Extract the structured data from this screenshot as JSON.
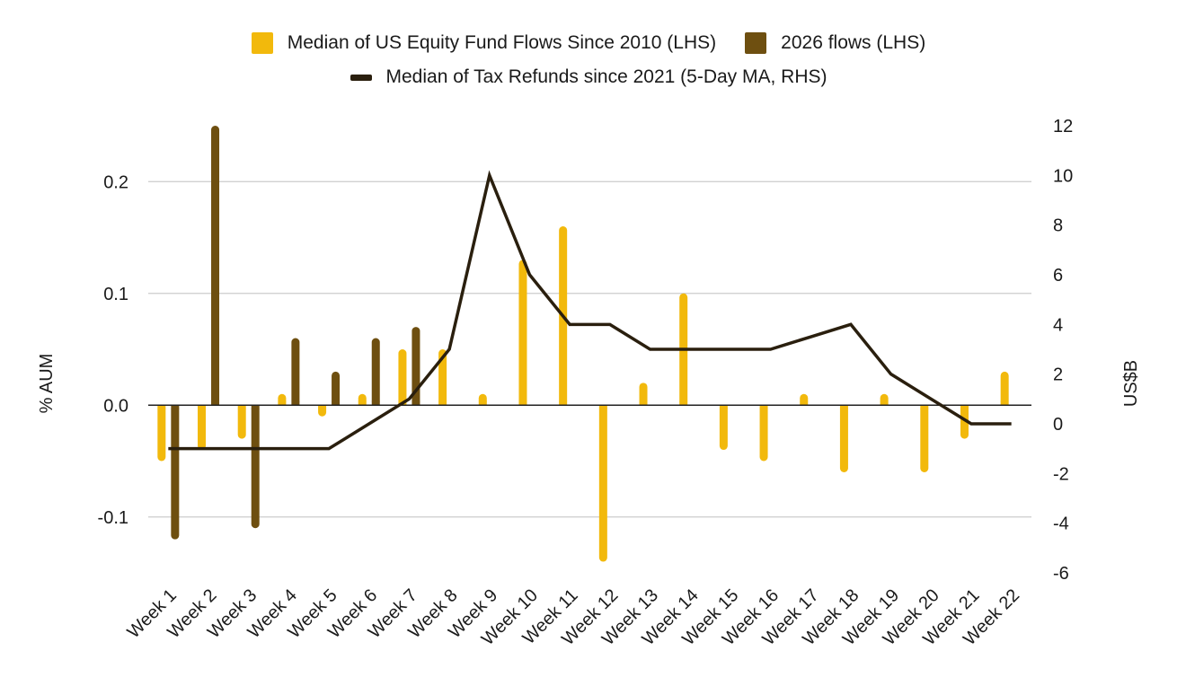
{
  "chart_data": {
    "type": "bar+line",
    "categories": [
      "Week 1",
      "Week 2",
      "Week 3",
      "Week 4",
      "Week 5",
      "Week 6",
      "Week 7",
      "Week 8",
      "Week 9",
      "Week 10",
      "Week 11",
      "Week 12",
      "Week 13",
      "Week 14",
      "Week 15",
      "Week 16",
      "Week 17",
      "Week 18",
      "Week 19",
      "Week 20",
      "Week 21",
      "Week 22"
    ],
    "series": [
      {
        "name": "Median of US Equity Fund Flows Since 2010 (LHS)",
        "type": "bar",
        "axis": "left",
        "color": "#F2B90C",
        "values": [
          -0.05,
          -0.04,
          -0.03,
          0.01,
          -0.01,
          0.01,
          0.05,
          0.05,
          0.01,
          0.13,
          0.16,
          -0.14,
          0.02,
          0.1,
          -0.04,
          -0.05,
          0.01,
          -0.06,
          0.01,
          -0.06,
          -0.03,
          0.03
        ]
      },
      {
        "name": "2026 flows (LHS)",
        "type": "bar",
        "axis": "left",
        "color": "#6E4F10",
        "values": [
          -0.12,
          0.25,
          -0.11,
          0.06,
          0.03,
          0.06,
          0.07,
          null,
          null,
          null,
          null,
          null,
          null,
          null,
          null,
          null,
          null,
          null,
          null,
          null,
          null,
          null
        ]
      },
      {
        "name": "Median of Tax Refunds since 2021 (5-Day MA, RHS)",
        "type": "line",
        "axis": "right",
        "color": "#2A1F0E",
        "values": [
          -1,
          -1,
          -1,
          -1,
          -1,
          0,
          1,
          3,
          10,
          6,
          4,
          4,
          3,
          3,
          3,
          3,
          3.5,
          4,
          2,
          1,
          0,
          0
        ]
      }
    ],
    "left_axis": {
      "title": "% AUM",
      "min": -0.15,
      "max": 0.25,
      "ticks": [
        -0.1,
        0.0,
        0.1,
        0.2
      ],
      "tick_labels": [
        "-0.1",
        "0.0",
        "0.1",
        "0.2"
      ]
    },
    "right_axis": {
      "title": "US$B",
      "min": -6,
      "max": 12,
      "ticks": [
        -6,
        -4,
        -2,
        0,
        2,
        4,
        6,
        8,
        10,
        12
      ],
      "tick_labels": [
        "-6",
        "-4",
        "-2",
        "0",
        "2",
        "4",
        "6",
        "8",
        "10",
        "12"
      ]
    },
    "grid": true,
    "legend_position": "top-center"
  },
  "legend": {
    "item1": "Median of US Equity Fund Flows Since 2010 (LHS)",
    "item2": "2026 flows (LHS)",
    "item3": "Median of Tax Refunds since 2021 (5-Day MA, RHS)"
  },
  "colors": {
    "gold": "#F2B90C",
    "brown": "#6E4F10",
    "line": "#2A1F0E",
    "grid": "#CCCCCC",
    "zero": "#222222"
  }
}
